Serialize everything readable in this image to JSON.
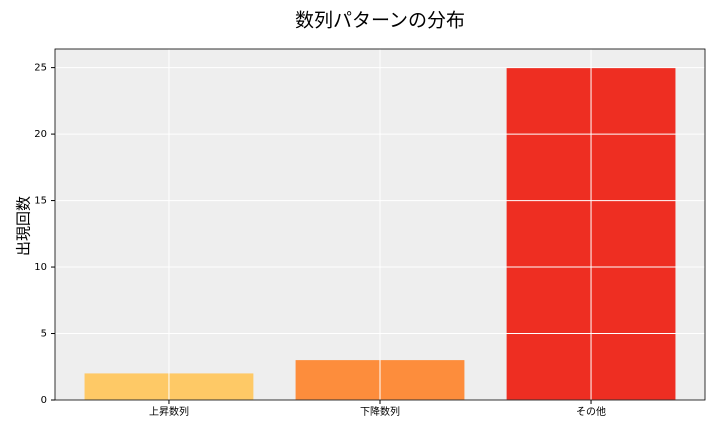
{
  "chart_data": {
    "type": "bar",
    "title": "数列パターンの分布",
    "y_label": "出現回数",
    "categories": [
      "上昇数列",
      "下降数列",
      "その他"
    ],
    "values": [
      2,
      3,
      25
    ],
    "colors": [
      "#fec966",
      "#fd8d3c",
      "#ee2e22"
    ],
    "ylim": [
      0,
      26.25
    ],
    "yticks": [
      0,
      5,
      10,
      15,
      20,
      25
    ],
    "grid": true
  }
}
